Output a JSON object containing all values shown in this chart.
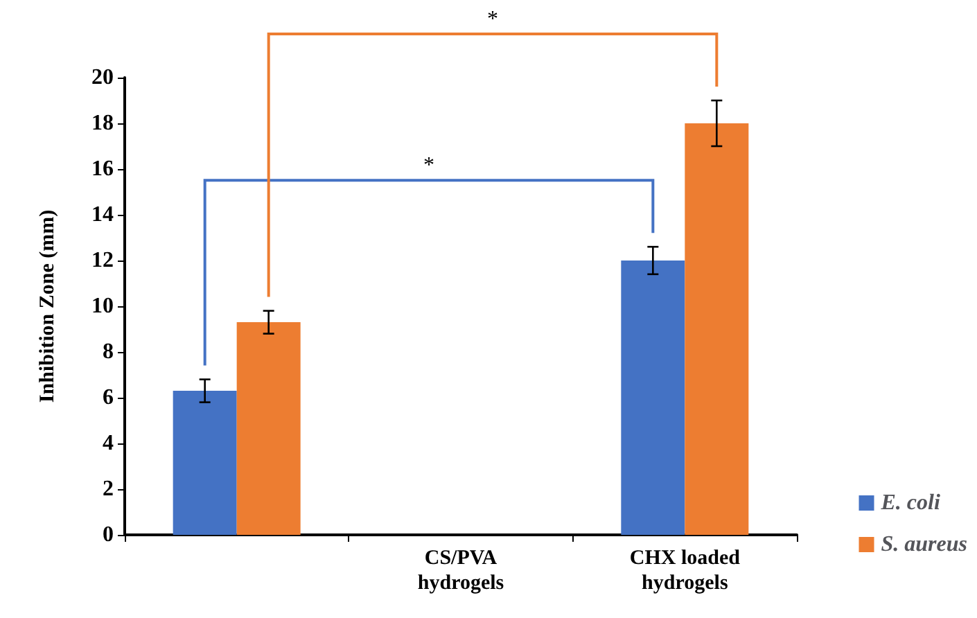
{
  "chart_data": {
    "type": "bar",
    "ylabel": "Inhibition Zone (mm)",
    "categories": [
      null,
      "CS/PVA\nhydrogels",
      "CHX loaded\nhydrogels"
    ],
    "series": [
      {
        "name": "E. coli",
        "color": "#4472c4",
        "values": [
          6.3,
          0,
          12.0
        ],
        "errors": [
          0.5,
          null,
          0.6
        ]
      },
      {
        "name": "S. aureus",
        "color": "#ed7d31",
        "values": [
          9.3,
          0,
          18.0
        ],
        "errors": [
          0.5,
          null,
          1.0
        ]
      }
    ],
    "ylim": [
      0,
      20
    ],
    "yticks": [
      0,
      2,
      4,
      6,
      8,
      10,
      12,
      14,
      16,
      18,
      20
    ],
    "grid": false,
    "legend": "bottom right",
    "annotations": [
      "*",
      "*"
    ]
  }
}
